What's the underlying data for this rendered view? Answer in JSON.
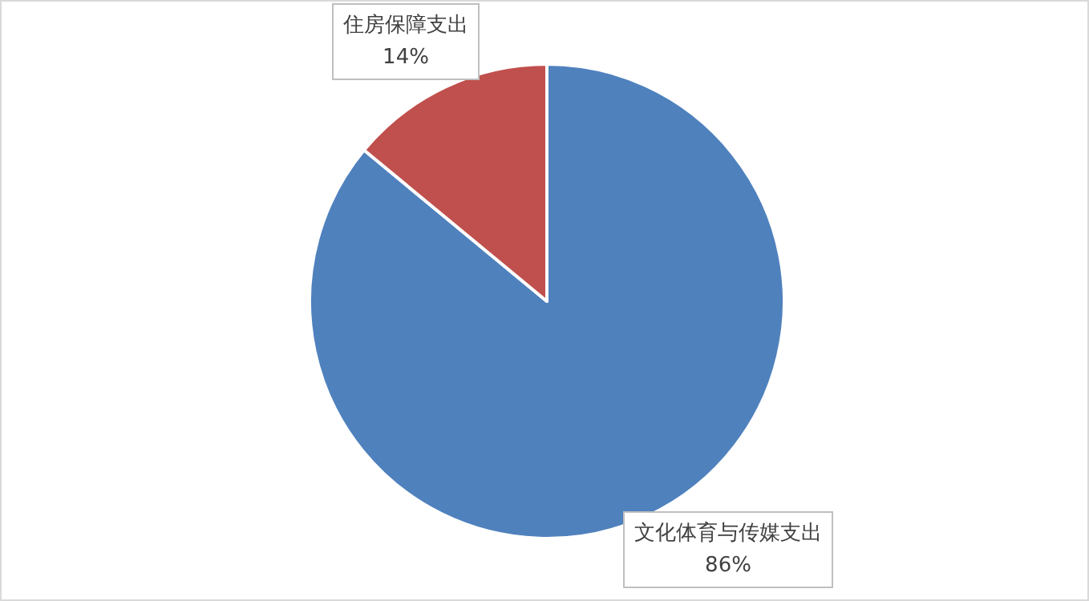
{
  "chart_data": {
    "type": "pie",
    "categories": [
      "文化体育与传媒支出",
      "住房保障支出"
    ],
    "values": [
      86,
      14
    ],
    "colors": [
      "#4f81bd",
      "#c0504d"
    ],
    "value_labels": [
      "86%",
      "14%"
    ],
    "legend": false
  }
}
